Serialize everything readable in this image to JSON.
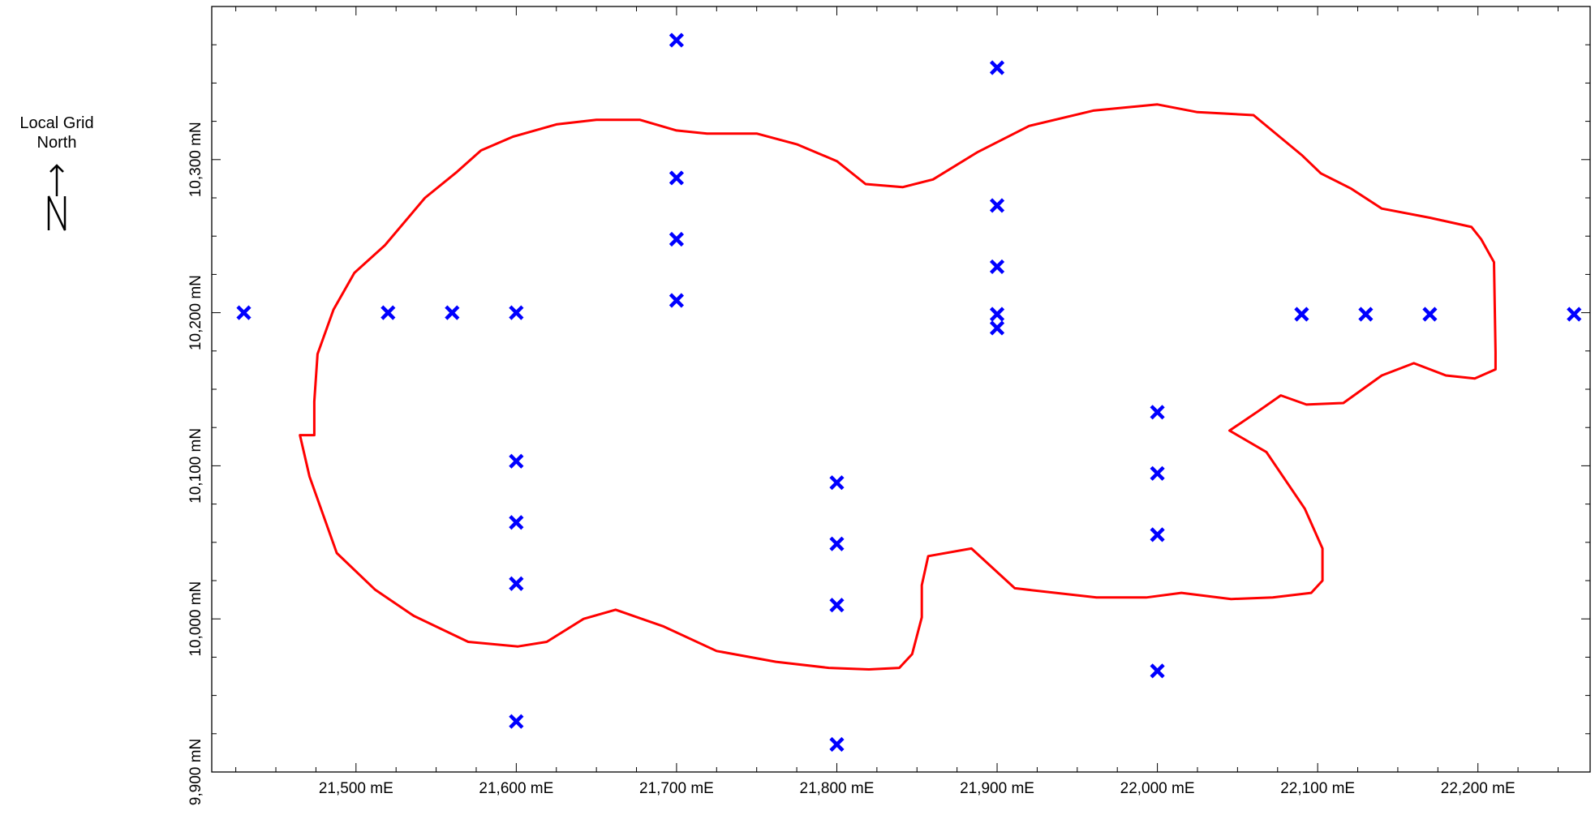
{
  "legend": {
    "north_label_line1": "Local Grid",
    "north_label_line2": "North",
    "north_symbol": "north-arrow-icon"
  },
  "chart_data": {
    "type": "scatter",
    "title": "",
    "xlabel": "",
    "ylabel": "",
    "xlim": [
      21410,
      22270
    ],
    "ylim": [
      9900,
      10400
    ],
    "x_ticks": [
      {
        "value": 21500,
        "label": "21,500 mE"
      },
      {
        "value": 21600,
        "label": "21,600 mE"
      },
      {
        "value": 21700,
        "label": "21,700 mE"
      },
      {
        "value": 21800,
        "label": "21,800 mE"
      },
      {
        "value": 21900,
        "label": "21,900 mE"
      },
      {
        "value": 22000,
        "label": "22,000 mE"
      },
      {
        "value": 22100,
        "label": "22,100 mE"
      },
      {
        "value": 22200,
        "label": "22,200 mE"
      }
    ],
    "y_ticks": [
      {
        "value": 9900,
        "label": "9,900 mN"
      },
      {
        "value": 10000,
        "label": "10,000 mN"
      },
      {
        "value": 10100,
        "label": "10,100 mN"
      },
      {
        "value": 10200,
        "label": "10,200 mN"
      },
      {
        "value": 10300,
        "label": "10,300 mN"
      }
    ],
    "colors": {
      "points": "#0000ff",
      "boundary": "#ff0000",
      "axes": "#000000"
    },
    "series": [
      {
        "type": "scatter",
        "marker": "x",
        "x": [
          21430,
          21520,
          21560,
          21600,
          21700,
          21700,
          21700,
          21700,
          21900,
          21900,
          21900,
          21900,
          21900,
          22090,
          22130,
          22170,
          22260,
          21600,
          21600,
          21600,
          21600,
          21800,
          21800,
          21800,
          21800,
          22000,
          22000,
          22000,
          22000
        ],
        "y": [
          10200,
          10200,
          10200,
          10200,
          10378,
          10288,
          10248,
          10208,
          10360,
          10270,
          10230,
          10190,
          10199,
          10199,
          10199,
          10199,
          10199,
          10103,
          10063,
          10023,
          9933,
          10089,
          10049,
          10009,
          9918,
          10135,
          10095,
          10055,
          9966
        ]
      },
      {
        "type": "line",
        "closed": true,
        "x": [
          21474,
          21474,
          21476,
          21486,
          21499,
          21518,
          21543,
          21563,
          21578,
          21598,
          21625,
          21650,
          21677,
          21700,
          21719,
          21750,
          21775,
          21800,
          21818,
          21841,
          21860,
          21888,
          21920,
          21960,
          22000,
          22025,
          22060,
          22090,
          22102,
          22121,
          22140,
          22170,
          22196,
          22202,
          22210,
          22211,
          22211,
          22198,
          22180,
          22160,
          22140,
          22116,
          22093,
          22077,
          22062,
          22045,
          22068,
          22092,
          22103,
          22103,
          22096,
          22072,
          22046,
          22015,
          21993,
          21962,
          21911,
          21884,
          21857,
          21853,
          21853,
          21847,
          21839,
          21820,
          21795,
          21762,
          21725,
          21692,
          21662,
          21642,
          21619,
          21601,
          21570,
          21536,
          21512,
          21488,
          21471,
          21465,
          21472
        ],
        "y": [
          10120,
          10142,
          10173,
          10202,
          10226,
          10244,
          10275,
          10292,
          10306,
          10315,
          10323,
          10326,
          10326,
          10319,
          10317,
          10317,
          10310,
          10299,
          10284,
          10282,
          10287,
          10305,
          10322,
          10332,
          10336,
          10331,
          10329,
          10303,
          10291,
          10281,
          10268,
          10262,
          10256,
          10248,
          10233,
          10174,
          10163,
          10157,
          10159,
          10167,
          10159,
          10141,
          10140,
          10146,
          10135,
          10123,
          10109,
          10072,
          10046,
          10025,
          10017,
          10014,
          10013,
          10017,
          10014,
          10014,
          10020,
          10046,
          10041,
          10022,
          10001,
          9977,
          9968,
          9967,
          9968,
          9972,
          9979,
          9995,
          10006,
          10000,
          9985,
          9982,
          9985,
          10002,
          10019,
          10043,
          10093,
          10120,
          10120
        ]
      }
    ]
  }
}
